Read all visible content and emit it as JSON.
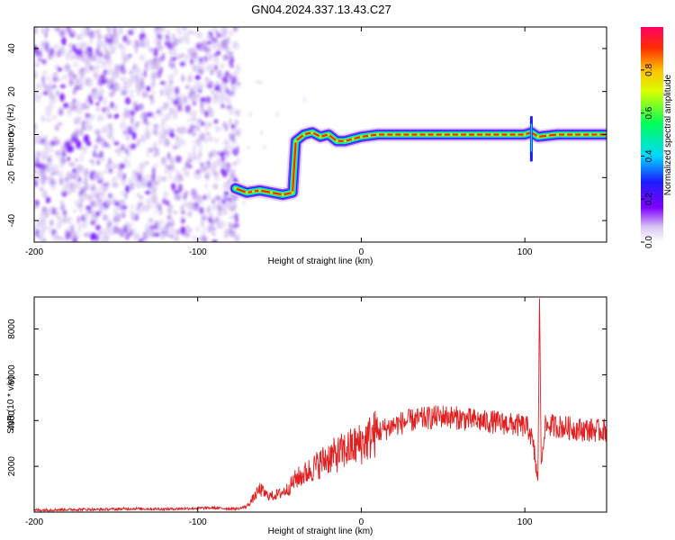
{
  "title": "GN04.2024.337.13.43.C27",
  "colorbar": {
    "label": "Normalized spectral amplitude",
    "ticks": [
      0.0,
      0.2,
      0.4,
      0.6,
      0.8
    ],
    "tick_labels": [
      "0.0",
      "0.2",
      "0.4",
      "0.6",
      "0.8"
    ],
    "range": [
      0,
      1
    ]
  },
  "chart_data": [
    {
      "type": "heatmap",
      "xlabel": "Height of straight line (km)",
      "ylabel": "Frequency (Hz)",
      "xlim": [
        -200,
        150
      ],
      "ylim": [
        -50,
        50
      ],
      "xticks": [
        -200,
        -100,
        0,
        100
      ],
      "xtick_labels": [
        "-200",
        "-100",
        "0",
        "100"
      ],
      "yticks": [
        -40,
        -20,
        0,
        20,
        40
      ],
      "ytick_labels": [
        "-40",
        "-20",
        "0",
        "20",
        "40"
      ],
      "noise_region_x": [
        -200,
        -75
      ],
      "ridge": {
        "x": [
          -77,
          -70,
          -62,
          -55,
          -48,
          -42,
          -40,
          -35,
          -30,
          -25,
          -20,
          -15,
          -10,
          -5,
          0,
          10,
          20,
          40,
          60,
          80,
          100,
          104,
          108,
          120,
          140,
          150
        ],
        "y": [
          -25,
          -27,
          -26,
          -27,
          -28,
          -27,
          -3,
          0,
          1,
          -1,
          0,
          -3,
          -3,
          -2,
          -1,
          0,
          0,
          0,
          0,
          0,
          0,
          1,
          -1,
          0,
          0,
          0
        ]
      }
    },
    {
      "type": "line",
      "xlabel": "Height of straight line (km)",
      "ylabel": "SNR (10 * v/v)",
      "xlim": [
        -200,
        150
      ],
      "ylim": [
        0,
        9400
      ],
      "xticks": [
        -200,
        -100,
        0,
        100
      ],
      "xtick_labels": [
        "-200",
        "-100",
        "0",
        "100"
      ],
      "yticks": [
        2000,
        4000,
        6000,
        8000
      ],
      "ytick_labels": [
        "2000",
        "4000",
        "6000",
        "8000"
      ],
      "series": [
        {
          "color": "#e02020",
          "x": [
            -200,
            -190,
            -180,
            -170,
            -160,
            -150,
            -140,
            -130,
            -120,
            -110,
            -100,
            -90,
            -80,
            -75,
            -70,
            -66,
            -62,
            -58,
            -55,
            -50,
            -45,
            -40,
            -35,
            -30,
            -25,
            -20,
            -15,
            -10,
            -5,
            0,
            5,
            10,
            15,
            20,
            25,
            30,
            35,
            40,
            45,
            50,
            55,
            60,
            65,
            70,
            75,
            80,
            85,
            90,
            95,
            100,
            103,
            106,
            108,
            109,
            110,
            112,
            115,
            120,
            125,
            130,
            135,
            140,
            145,
            150
          ],
          "y": [
            80,
            100,
            110,
            120,
            110,
            130,
            150,
            140,
            130,
            150,
            170,
            180,
            150,
            150,
            250,
            600,
            1000,
            750,
            700,
            800,
            1000,
            1450,
            1650,
            1900,
            2150,
            2400,
            2500,
            2700,
            2850,
            3000,
            3250,
            3500,
            3650,
            3800,
            3900,
            4000,
            4050,
            4100,
            4150,
            4200,
            4150,
            4100,
            4050,
            4000,
            3950,
            3950,
            3900,
            3850,
            3800,
            3750,
            3600,
            2500,
            1300,
            9400,
            2000,
            3700,
            3800,
            3750,
            3700,
            3650,
            3600,
            3600,
            3550,
            3600
          ]
        }
      ]
    }
  ]
}
